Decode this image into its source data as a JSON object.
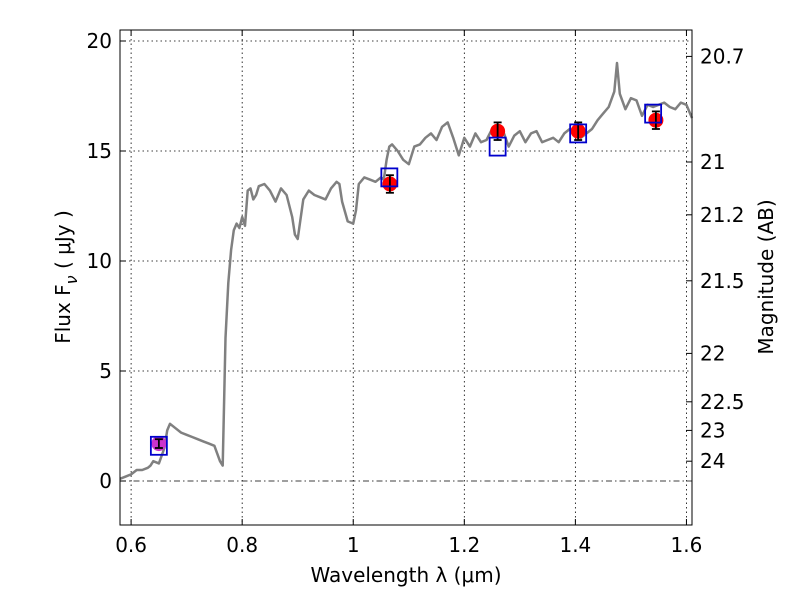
{
  "chart_data": {
    "type": "line",
    "xlabel": "Wavelength  λ (μm)",
    "ylabel_left": "Flux  F",
    "ylabel_left_sub": "ν",
    "ylabel_left_unit": " ( μJy )",
    "ylabel_right": "Magnitude (AB)",
    "xlim": [
      0.58,
      1.61
    ],
    "ylim": [
      -2,
      20.5
    ],
    "x_ticks": [
      {
        "value": 0.6,
        "label": "0.6"
      },
      {
        "value": 0.8,
        "label": "0.8"
      },
      {
        "value": 1.0,
        "label": "1"
      },
      {
        "value": 1.2,
        "label": "1.2"
      },
      {
        "value": 1.4,
        "label": "1.4"
      },
      {
        "value": 1.6,
        "label": "1.6"
      }
    ],
    "y_ticks": [
      {
        "value": 0,
        "label": "0"
      },
      {
        "value": 5,
        "label": "5"
      },
      {
        "value": 10,
        "label": "10"
      },
      {
        "value": 15,
        "label": "15"
      },
      {
        "value": 20,
        "label": "20"
      }
    ],
    "right_ticks": [
      {
        "flux": 19.3,
        "label": "20.7"
      },
      {
        "flux": 14.5,
        "label": "21"
      },
      {
        "flux": 12.1,
        "label": "21.2"
      },
      {
        "flux": 9.1,
        "label": "21.5"
      },
      {
        "flux": 5.8,
        "label": "22"
      },
      {
        "flux": 3.6,
        "label": "22.5"
      },
      {
        "flux": 2.3,
        "label": "23"
      },
      {
        "flux": 0.9,
        "label": "24"
      }
    ],
    "grid": true,
    "colors": {
      "model": "#808080",
      "observed": "#ff0000",
      "model_band": "#0000cc",
      "first_point": "#cc33cc",
      "error_bar": "#000000"
    },
    "series": [
      {
        "name": "model_spectrum",
        "style": "line",
        "x": [
          0.58,
          0.6,
          0.61,
          0.62,
          0.63,
          0.635,
          0.64,
          0.65,
          0.66,
          0.665,
          0.67,
          0.68,
          0.69,
          0.7,
          0.71,
          0.72,
          0.73,
          0.74,
          0.75,
          0.76,
          0.765,
          0.77,
          0.775,
          0.78,
          0.785,
          0.79,
          0.795,
          0.8,
          0.805,
          0.81,
          0.815,
          0.82,
          0.825,
          0.83,
          0.84,
          0.85,
          0.86,
          0.87,
          0.88,
          0.89,
          0.895,
          0.9,
          0.91,
          0.92,
          0.93,
          0.94,
          0.95,
          0.96,
          0.97,
          0.975,
          0.98,
          0.99,
          1.0,
          1.005,
          1.01,
          1.02,
          1.03,
          1.04,
          1.05,
          1.055,
          1.06,
          1.065,
          1.07,
          1.08,
          1.09,
          1.1,
          1.11,
          1.12,
          1.13,
          1.14,
          1.15,
          1.16,
          1.17,
          1.18,
          1.19,
          1.2,
          1.21,
          1.22,
          1.23,
          1.24,
          1.25,
          1.26,
          1.27,
          1.28,
          1.29,
          1.3,
          1.31,
          1.32,
          1.33,
          1.34,
          1.35,
          1.36,
          1.37,
          1.38,
          1.39,
          1.4,
          1.41,
          1.42,
          1.43,
          1.44,
          1.45,
          1.46,
          1.47,
          1.475,
          1.48,
          1.49,
          1.5,
          1.51,
          1.52,
          1.53,
          1.54,
          1.55,
          1.56,
          1.57,
          1.58,
          1.59,
          1.6,
          1.61
        ],
        "y": [
          0.1,
          0.3,
          0.5,
          0.5,
          0.6,
          0.7,
          0.9,
          0.8,
          1.5,
          2.3,
          2.6,
          2.4,
          2.2,
          2.1,
          2.0,
          1.9,
          1.8,
          1.7,
          1.6,
          0.9,
          0.7,
          6.5,
          9.0,
          10.5,
          11.4,
          11.7,
          11.5,
          12.0,
          11.6,
          13.2,
          13.3,
          12.8,
          13.0,
          13.4,
          13.5,
          13.2,
          12.7,
          13.3,
          13.0,
          12.0,
          11.2,
          11.0,
          12.8,
          13.2,
          13.0,
          12.9,
          12.8,
          13.3,
          13.6,
          13.5,
          12.7,
          11.8,
          11.7,
          12.3,
          13.5,
          13.8,
          13.7,
          13.6,
          13.8,
          13.7,
          14.6,
          15.2,
          15.3,
          15.0,
          14.6,
          14.4,
          15.2,
          15.3,
          15.6,
          15.8,
          15.5,
          16.1,
          16.3,
          15.6,
          14.8,
          15.6,
          15.2,
          15.8,
          15.4,
          15.5,
          16.0,
          15.6,
          15.9,
          15.2,
          15.7,
          15.9,
          15.4,
          15.8,
          15.9,
          15.4,
          15.5,
          15.6,
          15.4,
          15.8,
          16.0,
          15.9,
          15.6,
          15.8,
          16.0,
          16.4,
          16.7,
          17.0,
          17.7,
          19.0,
          17.6,
          16.9,
          17.4,
          17.3,
          16.6,
          17.1,
          17.0,
          17.1,
          17.2,
          17.0,
          16.9,
          17.2,
          17.1,
          16.5
        ]
      },
      {
        "name": "model_photometry",
        "style": "open-square",
        "x": [
          0.65,
          1.065,
          1.26,
          1.405,
          1.54
        ],
        "y": [
          1.6,
          13.8,
          15.2,
          15.8,
          16.7
        ]
      },
      {
        "name": "observed_photometry",
        "style": "filled-circle-errorbar",
        "x": [
          0.65,
          1.066,
          1.26,
          1.405,
          1.545
        ],
        "y": [
          1.7,
          13.5,
          15.9,
          15.9,
          16.4
        ],
        "yerr": [
          0.2,
          0.4,
          0.4,
          0.4,
          0.4
        ]
      }
    ]
  }
}
